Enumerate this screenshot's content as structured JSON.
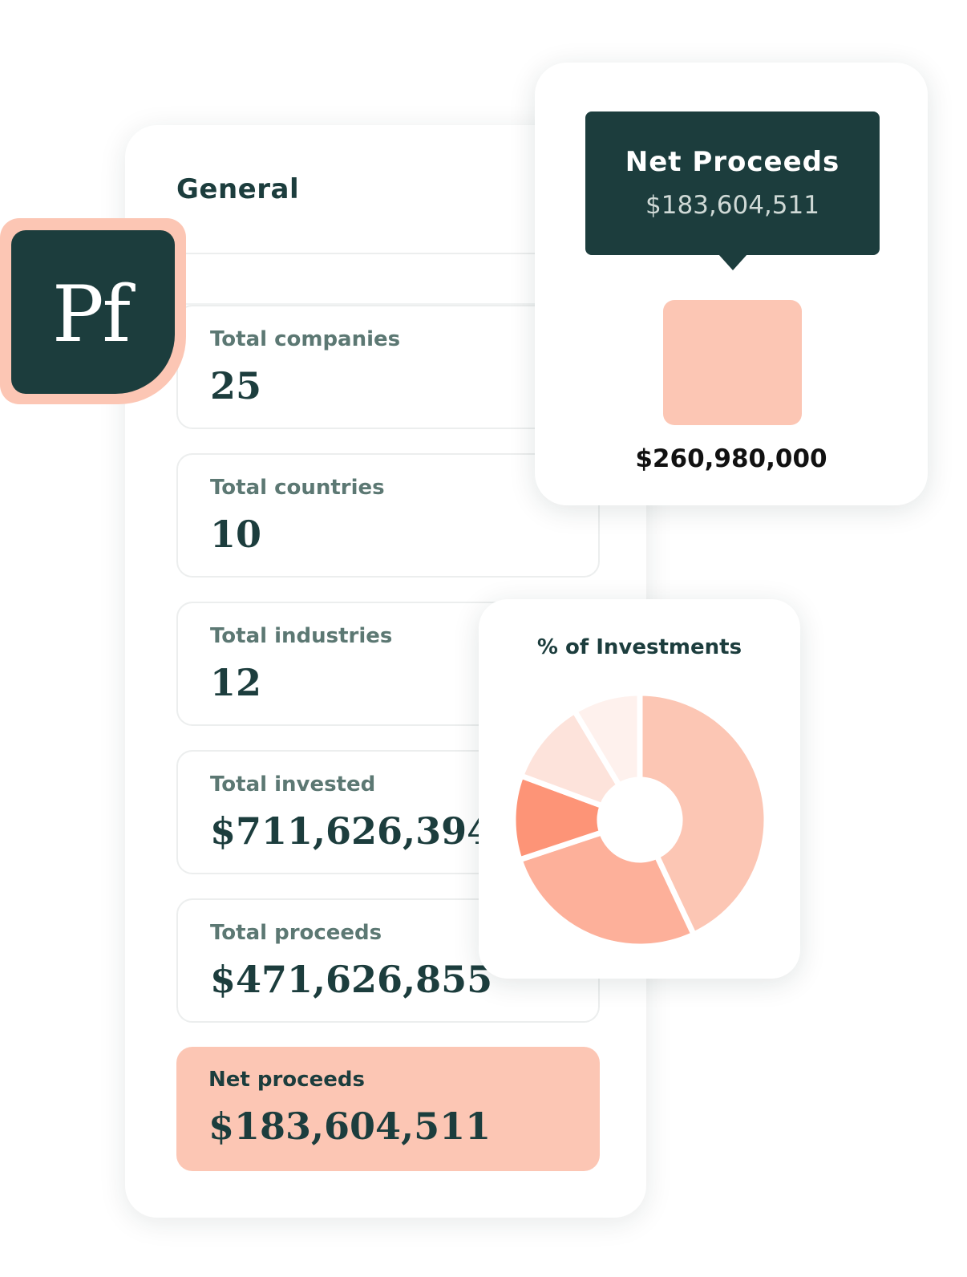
{
  "logo": {
    "text": "Pf"
  },
  "general": {
    "title": "General",
    "stats": [
      {
        "label": "Total companies",
        "value": "25"
      },
      {
        "label": "Total countries",
        "value": "10"
      },
      {
        "label": "Total industries",
        "value": "12"
      },
      {
        "label": "Total invested",
        "value": "$711,626,394"
      },
      {
        "label": "Total proceeds",
        "value": "$471,626,855"
      },
      {
        "label": "Net proceeds",
        "value": "$183,604,511"
      }
    ]
  },
  "net_card": {
    "tooltip_title": "Net Proceeds",
    "tooltip_value": "$183,604,511",
    "bar_value": "$260,980,000"
  },
  "colors": {
    "dark_green": "#1c3d3d",
    "peach": "#fcc6b4",
    "muted_label": "#5c7873"
  },
  "chart_data": {
    "type": "pie",
    "title": "% of Investments",
    "donut": true,
    "slices": [
      {
        "value": 40,
        "color": "#fcc6b4"
      },
      {
        "value": 25,
        "color": "#fdb09a"
      },
      {
        "value": 10,
        "color": "#fd9477"
      },
      {
        "value": 10,
        "color": "#fde3db"
      },
      {
        "value": 8,
        "color": "#fef1ed"
      }
    ]
  }
}
